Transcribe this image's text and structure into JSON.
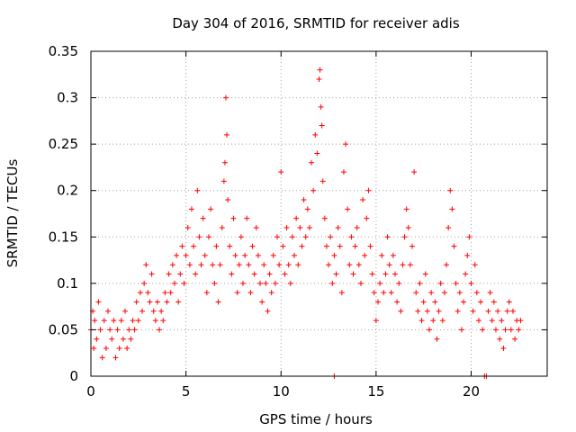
{
  "chart_data": {
    "type": "scatter",
    "title": "Day 304 of 2016, SRMTID for receiver adis",
    "xlabel": "GPS time / hours",
    "ylabel": "SRMTID / TECUs",
    "xlim": [
      0,
      24
    ],
    "ylim": [
      0,
      0.35
    ],
    "xticks": [
      0,
      5,
      10,
      15,
      20
    ],
    "yticks": [
      0,
      0.05,
      0.1,
      0.15,
      0.2,
      0.25,
      0.3,
      0.35
    ],
    "grid": true,
    "marker": "+",
    "series_color": "#ff0000",
    "series": [
      {
        "name": "SRMTID",
        "points": [
          [
            0.0,
            0.05
          ],
          [
            0.1,
            0.07
          ],
          [
            0.15,
            0.03
          ],
          [
            0.2,
            0.06
          ],
          [
            0.3,
            0.04
          ],
          [
            0.4,
            0.08
          ],
          [
            0.5,
            0.05
          ],
          [
            0.6,
            0.02
          ],
          [
            0.7,
            0.06
          ],
          [
            0.8,
            0.03
          ],
          [
            0.9,
            0.07
          ],
          [
            1.0,
            0.05
          ],
          [
            1.1,
            0.04
          ],
          [
            1.2,
            0.06
          ],
          [
            1.3,
            0.02
          ],
          [
            1.4,
            0.05
          ],
          [
            1.5,
            0.03
          ],
          [
            1.6,
            0.06
          ],
          [
            1.7,
            0.04
          ],
          [
            1.8,
            0.07
          ],
          [
            1.9,
            0.03
          ],
          [
            2.0,
            0.05
          ],
          [
            2.1,
            0.04
          ],
          [
            2.2,
            0.06
          ],
          [
            2.3,
            0.05
          ],
          [
            2.4,
            0.08
          ],
          [
            2.5,
            0.06
          ],
          [
            2.6,
            0.09
          ],
          [
            2.7,
            0.07
          ],
          [
            2.8,
            0.1
          ],
          [
            2.9,
            0.12
          ],
          [
            3.0,
            0.09
          ],
          [
            3.1,
            0.08
          ],
          [
            3.2,
            0.11
          ],
          [
            3.3,
            0.07
          ],
          [
            3.4,
            0.06
          ],
          [
            3.5,
            0.08
          ],
          [
            3.6,
            0.05
          ],
          [
            3.7,
            0.07
          ],
          [
            3.8,
            0.06
          ],
          [
            3.9,
            0.09
          ],
          [
            4.0,
            0.08
          ],
          [
            4.1,
            0.11
          ],
          [
            4.2,
            0.09
          ],
          [
            4.3,
            0.12
          ],
          [
            4.4,
            0.1
          ],
          [
            4.5,
            0.13
          ],
          [
            4.6,
            0.08
          ],
          [
            4.7,
            0.11
          ],
          [
            4.8,
            0.14
          ],
          [
            4.9,
            0.1
          ],
          [
            5.0,
            0.13
          ],
          [
            5.1,
            0.16
          ],
          [
            5.2,
            0.12
          ],
          [
            5.3,
            0.18
          ],
          [
            5.4,
            0.14
          ],
          [
            5.5,
            0.11
          ],
          [
            5.6,
            0.2
          ],
          [
            5.7,
            0.15
          ],
          [
            5.8,
            0.12
          ],
          [
            5.9,
            0.17
          ],
          [
            6.0,
            0.13
          ],
          [
            6.1,
            0.09
          ],
          [
            6.2,
            0.15
          ],
          [
            6.3,
            0.18
          ],
          [
            6.4,
            0.12
          ],
          [
            6.5,
            0.1
          ],
          [
            6.6,
            0.14
          ],
          [
            6.7,
            0.08
          ],
          [
            6.8,
            0.12
          ],
          [
            6.9,
            0.16
          ],
          [
            7.0,
            0.21
          ],
          [
            7.05,
            0.23
          ],
          [
            7.1,
            0.3
          ],
          [
            7.15,
            0.26
          ],
          [
            7.2,
            0.19
          ],
          [
            7.3,
            0.14
          ],
          [
            7.4,
            0.11
          ],
          [
            7.5,
            0.17
          ],
          [
            7.6,
            0.13
          ],
          [
            7.7,
            0.09
          ],
          [
            7.8,
            0.12
          ],
          [
            7.9,
            0.15
          ],
          [
            8.0,
            0.1
          ],
          [
            8.1,
            0.13
          ],
          [
            8.2,
            0.17
          ],
          [
            8.3,
            0.12
          ],
          [
            8.4,
            0.09
          ],
          [
            8.5,
            0.14
          ],
          [
            8.6,
            0.11
          ],
          [
            8.7,
            0.16
          ],
          [
            8.8,
            0.13
          ],
          [
            8.9,
            0.1
          ],
          [
            9.0,
            0.08
          ],
          [
            9.1,
            0.12
          ],
          [
            9.2,
            0.1
          ],
          [
            9.3,
            0.07
          ],
          [
            9.4,
            0.11
          ],
          [
            9.5,
            0.09
          ],
          [
            9.6,
            0.13
          ],
          [
            9.7,
            0.1
          ],
          [
            9.8,
            0.15
          ],
          [
            9.9,
            0.12
          ],
          [
            10.0,
            0.22
          ],
          [
            10.1,
            0.14
          ],
          [
            10.2,
            0.11
          ],
          [
            10.3,
            0.16
          ],
          [
            10.4,
            0.12
          ],
          [
            10.5,
            0.1
          ],
          [
            10.6,
            0.15
          ],
          [
            10.7,
            0.13
          ],
          [
            10.8,
            0.17
          ],
          [
            10.9,
            0.12
          ],
          [
            11.0,
            0.16
          ],
          [
            11.1,
            0.14
          ],
          [
            11.2,
            0.19
          ],
          [
            11.3,
            0.15
          ],
          [
            11.4,
            0.18
          ],
          [
            11.5,
            0.16
          ],
          [
            11.6,
            0.23
          ],
          [
            11.7,
            0.2
          ],
          [
            11.8,
            0.26
          ],
          [
            11.9,
            0.24
          ],
          [
            12.0,
            0.32
          ],
          [
            12.05,
            0.33
          ],
          [
            12.1,
            0.29
          ],
          [
            12.15,
            0.27
          ],
          [
            12.2,
            0.21
          ],
          [
            12.3,
            0.17
          ],
          [
            12.4,
            0.14
          ],
          [
            12.5,
            0.12
          ],
          [
            12.6,
            0.15
          ],
          [
            12.7,
            0.1
          ],
          [
            12.8,
            0.13
          ],
          [
            12.9,
            0.11
          ],
          [
            13.0,
            0.16
          ],
          [
            13.1,
            0.14
          ],
          [
            13.2,
            0.09
          ],
          [
            13.3,
            0.22
          ],
          [
            13.4,
            0.25
          ],
          [
            13.5,
            0.18
          ],
          [
            13.6,
            0.12
          ],
          [
            13.7,
            0.15
          ],
          [
            13.8,
            0.11
          ],
          [
            13.9,
            0.14
          ],
          [
            14.0,
            0.16
          ],
          [
            14.1,
            0.12
          ],
          [
            14.2,
            0.1
          ],
          [
            14.3,
            0.19
          ],
          [
            14.4,
            0.13
          ],
          [
            14.5,
            0.17
          ],
          [
            14.6,
            0.2
          ],
          [
            14.7,
            0.14
          ],
          [
            14.8,
            0.11
          ],
          [
            14.9,
            0.09
          ],
          [
            15.0,
            0.06
          ],
          [
            15.1,
            0.08
          ],
          [
            15.2,
            0.1
          ],
          [
            15.3,
            0.13
          ],
          [
            15.4,
            0.09
          ],
          [
            15.5,
            0.11
          ],
          [
            15.6,
            0.15
          ],
          [
            15.7,
            0.12
          ],
          [
            15.8,
            0.09
          ],
          [
            15.9,
            0.13
          ],
          [
            16.0,
            0.11
          ],
          [
            16.1,
            0.08
          ],
          [
            16.2,
            0.1
          ],
          [
            16.3,
            0.07
          ],
          [
            16.4,
            0.12
          ],
          [
            16.5,
            0.15
          ],
          [
            16.6,
            0.18
          ],
          [
            16.7,
            0.16
          ],
          [
            16.8,
            0.12
          ],
          [
            16.9,
            0.14
          ],
          [
            17.0,
            0.22
          ],
          [
            17.1,
            0.09
          ],
          [
            17.2,
            0.07
          ],
          [
            17.3,
            0.1
          ],
          [
            17.4,
            0.06
          ],
          [
            17.5,
            0.08
          ],
          [
            17.6,
            0.11
          ],
          [
            17.7,
            0.07
          ],
          [
            17.8,
            0.05
          ],
          [
            17.9,
            0.09
          ],
          [
            18.0,
            0.06
          ],
          [
            18.1,
            0.08
          ],
          [
            18.2,
            0.04
          ],
          [
            18.3,
            0.07
          ],
          [
            18.4,
            0.1
          ],
          [
            18.5,
            0.06
          ],
          [
            18.6,
            0.09
          ],
          [
            18.7,
            0.12
          ],
          [
            18.8,
            0.16
          ],
          [
            18.9,
            0.2
          ],
          [
            19.0,
            0.18
          ],
          [
            19.1,
            0.14
          ],
          [
            19.2,
            0.1
          ],
          [
            19.3,
            0.07
          ],
          [
            19.4,
            0.09
          ],
          [
            19.5,
            0.05
          ],
          [
            19.6,
            0.08
          ],
          [
            19.7,
            0.11
          ],
          [
            19.8,
            0.13
          ],
          [
            19.9,
            0.15
          ],
          [
            20.0,
            0.1
          ],
          [
            20.1,
            0.07
          ],
          [
            20.2,
            0.12
          ],
          [
            20.3,
            0.09
          ],
          [
            20.4,
            0.06
          ],
          [
            20.5,
            0.08
          ],
          [
            20.6,
            0.05
          ],
          [
            20.7,
            0.0
          ],
          [
            20.8,
            0.0
          ],
          [
            20.9,
            0.07
          ],
          [
            21.0,
            0.09
          ],
          [
            21.1,
            0.06
          ],
          [
            21.2,
            0.08
          ],
          [
            21.3,
            0.05
          ],
          [
            21.4,
            0.07
          ],
          [
            21.5,
            0.04
          ],
          [
            21.6,
            0.06
          ],
          [
            21.7,
            0.03
          ],
          [
            21.8,
            0.05
          ],
          [
            21.9,
            0.07
          ],
          [
            22.0,
            0.08
          ],
          [
            22.1,
            0.05
          ],
          [
            22.2,
            0.07
          ],
          [
            22.3,
            0.04
          ],
          [
            22.4,
            0.06
          ],
          [
            22.5,
            0.05
          ],
          [
            22.6,
            0.06
          ],
          [
            12.8,
            0.0
          ]
        ]
      }
    ]
  }
}
